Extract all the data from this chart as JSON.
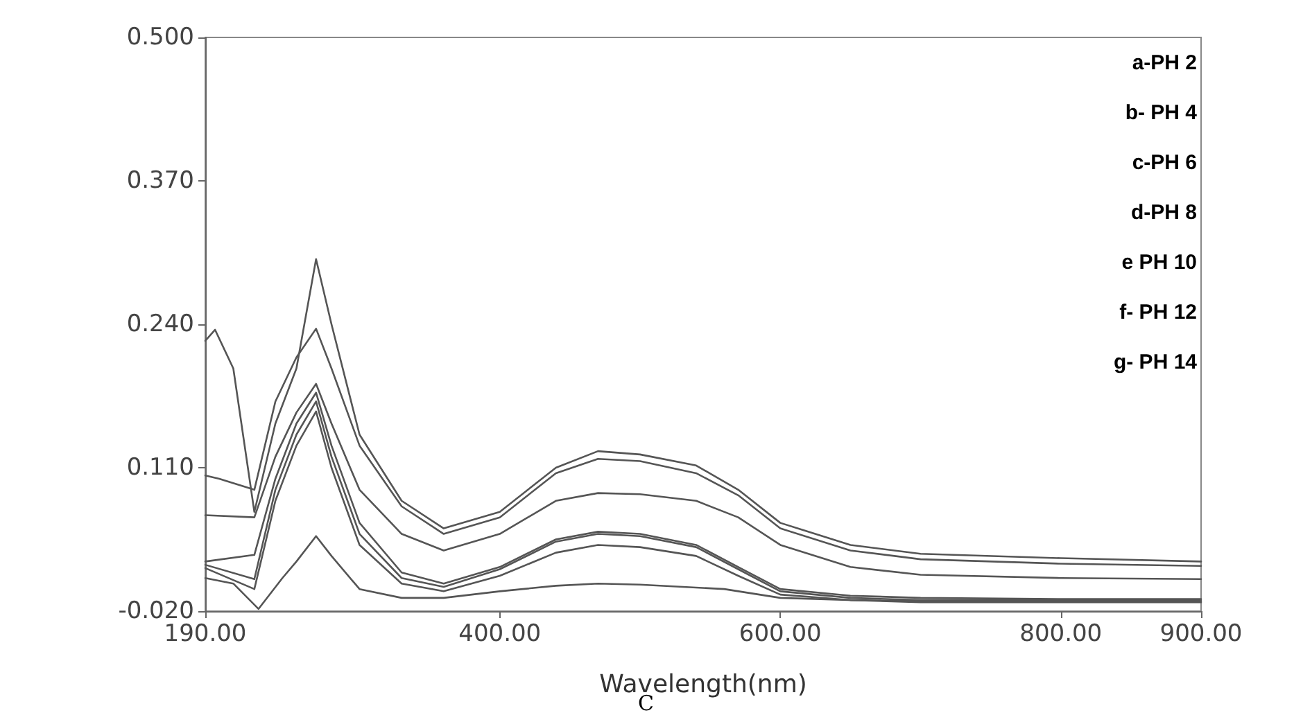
{
  "chart_data": {
    "type": "line",
    "xlabel": "Wavelength(nm)",
    "annotations": [
      "a-PH 2",
      "b- PH 4",
      "c-PH 6",
      "d-PH 8",
      "e PH 10",
      "f- PH 12",
      "g- PH 14",
      "C"
    ],
    "xlim": [
      190,
      900
    ],
    "xticks": [
      {
        "value": 190,
        "label": "190.00"
      },
      {
        "value": 400,
        "label": "400.00"
      },
      {
        "value": 600,
        "label": "600.00"
      },
      {
        "value": 800,
        "label": "800.00"
      },
      {
        "value": 900,
        "label": "900.00"
      }
    ],
    "ylim": [
      -0.02,
      0.5
    ],
    "yticks": [
      {
        "value": -0.02,
        "label": "-0.020"
      },
      {
        "value": 0.11,
        "label": "0.110"
      },
      {
        "value": 0.24,
        "label": "0.240"
      },
      {
        "value": 0.37,
        "label": "0.370"
      },
      {
        "value": 0.5,
        "label": "0.500"
      }
    ],
    "grid": false,
    "marker": "none",
    "line_style": "solid",
    "series": [
      {
        "color": "#555555",
        "x": [
          190,
          197,
          210,
          225,
          240,
          255,
          269,
          280,
          300,
          330,
          360,
          400,
          440,
          470,
          500,
          540,
          570,
          600,
          650,
          700,
          800,
          900
        ],
        "values": [
          0.225,
          0.235,
          0.2,
          0.07,
          0.15,
          0.2,
          0.299,
          0.24,
          0.14,
          0.08,
          0.055,
          0.07,
          0.11,
          0.125,
          0.122,
          0.112,
          0.09,
          0.06,
          0.04,
          0.032,
          0.028,
          0.025
        ]
      },
      {
        "color": "#555555",
        "x": [
          190,
          200,
          225,
          240,
          255,
          269,
          280,
          300,
          330,
          360,
          400,
          440,
          470,
          500,
          540,
          570,
          600,
          650,
          700,
          800,
          900
        ],
        "values": [
          0.103,
          0.1,
          0.09,
          0.17,
          0.21,
          0.236,
          0.2,
          0.13,
          0.075,
          0.05,
          0.065,
          0.105,
          0.118,
          0.116,
          0.105,
          0.085,
          0.055,
          0.035,
          0.027,
          0.023,
          0.021
        ]
      },
      {
        "color": "#555555",
        "x": [
          190,
          225,
          240,
          255,
          269,
          280,
          300,
          330,
          360,
          400,
          440,
          470,
          500,
          540,
          570,
          600,
          650,
          700,
          800,
          900
        ],
        "values": [
          0.067,
          0.065,
          0.12,
          0.16,
          0.186,
          0.15,
          0.09,
          0.05,
          0.035,
          0.05,
          0.08,
          0.087,
          0.086,
          0.08,
          0.065,
          0.04,
          0.02,
          0.013,
          0.01,
          0.009
        ]
      },
      {
        "color": "#555555",
        "x": [
          190,
          225,
          240,
          255,
          269,
          280,
          300,
          330,
          360,
          400,
          440,
          470,
          500,
          540,
          570,
          600,
          650,
          700,
          800,
          900
        ],
        "values": [
          0.025,
          0.031,
          0.1,
          0.15,
          0.178,
          0.13,
          0.06,
          0.015,
          0.005,
          0.02,
          0.045,
          0.052,
          0.05,
          0.04,
          0.02,
          0.0,
          -0.006,
          -0.008,
          -0.009,
          -0.009
        ]
      },
      {
        "color": "#555555",
        "x": [
          190,
          225,
          240,
          255,
          269,
          280,
          300,
          330,
          360,
          400,
          440,
          470,
          500,
          540,
          570,
          600,
          650,
          700,
          800,
          900
        ],
        "values": [
          0.022,
          0.009,
          0.09,
          0.14,
          0.17,
          0.12,
          0.05,
          0.01,
          0.002,
          0.018,
          0.043,
          0.05,
          0.048,
          0.038,
          0.018,
          -0.002,
          -0.008,
          -0.01,
          -0.01,
          -0.01
        ]
      },
      {
        "color": "#555555",
        "x": [
          190,
          225,
          240,
          255,
          269,
          280,
          300,
          330,
          360,
          400,
          440,
          470,
          500,
          540,
          570,
          600,
          650,
          700,
          800,
          900
        ],
        "values": [
          0.019,
          0.0,
          0.08,
          0.13,
          0.161,
          0.11,
          0.04,
          0.005,
          -0.002,
          0.012,
          0.033,
          0.04,
          0.038,
          0.03,
          0.012,
          -0.005,
          -0.01,
          -0.011,
          -0.011,
          -0.011
        ]
      },
      {
        "color": "#555555",
        "x": [
          190,
          210,
          228,
          245,
          255,
          269,
          280,
          300,
          330,
          360,
          400,
          440,
          470,
          500,
          560,
          600,
          700,
          900
        ],
        "values": [
          0.01,
          0.005,
          -0.018,
          0.01,
          0.025,
          0.048,
          0.03,
          0.0,
          -0.008,
          -0.008,
          -0.002,
          0.003,
          0.005,
          0.004,
          0.0,
          -0.008,
          -0.012,
          -0.012
        ]
      }
    ]
  }
}
